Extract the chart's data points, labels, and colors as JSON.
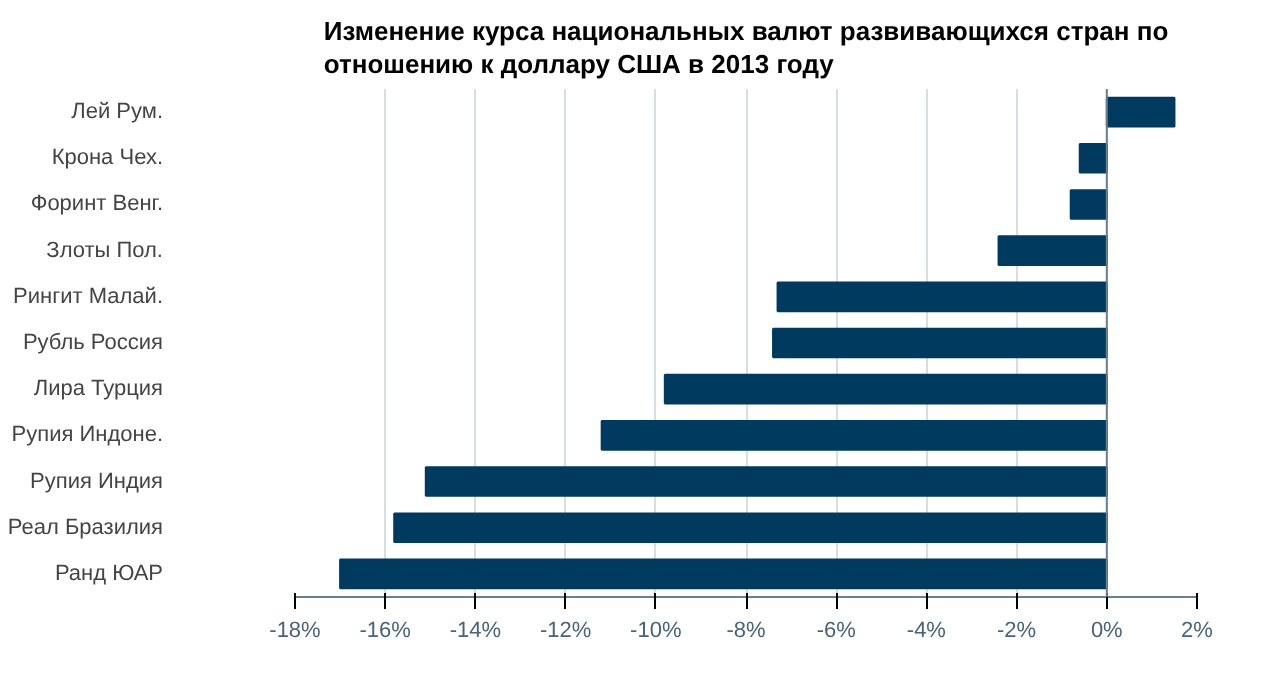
{
  "chart_data": {
    "type": "bar",
    "orientation": "horizontal",
    "title": "Изменение курса национальных валют развивающихся стран по\nотношению к доллару США в 2013 году",
    "categories": [
      "Лей Рум.",
      "Крона Чех.",
      "Форинт Венг.",
      "Злоты Пол.",
      "Рингит Малай.",
      "Рубль Россия",
      "Лира Турция",
      "Рупия Индоне.",
      "Рупия Индия",
      "Реал Бразилия",
      "Ранд ЮАР"
    ],
    "values": [
      1.5,
      -0.6,
      -0.8,
      -2.4,
      -7.3,
      -7.4,
      -9.8,
      -11.2,
      -15.1,
      -15.8,
      -17.0
    ],
    "color": "#003a5f",
    "xlim": [
      -18,
      2
    ],
    "xticks": [
      {
        "value": -18,
        "label": "-18%"
      },
      {
        "value": -16,
        "label": "-16%"
      },
      {
        "value": -14,
        "label": "-14%"
      },
      {
        "value": -12,
        "label": "-12%"
      },
      {
        "value": -10,
        "label": "-10%"
      },
      {
        "value": -8,
        "label": "-8%"
      },
      {
        "value": -6,
        "label": "-6%"
      },
      {
        "value": -4,
        "label": "-4%"
      },
      {
        "value": -2,
        "label": "-2%"
      },
      {
        "value": 0,
        "label": "0%"
      },
      {
        "value": 2,
        "label": "2%"
      }
    ],
    "grid": "x"
  }
}
